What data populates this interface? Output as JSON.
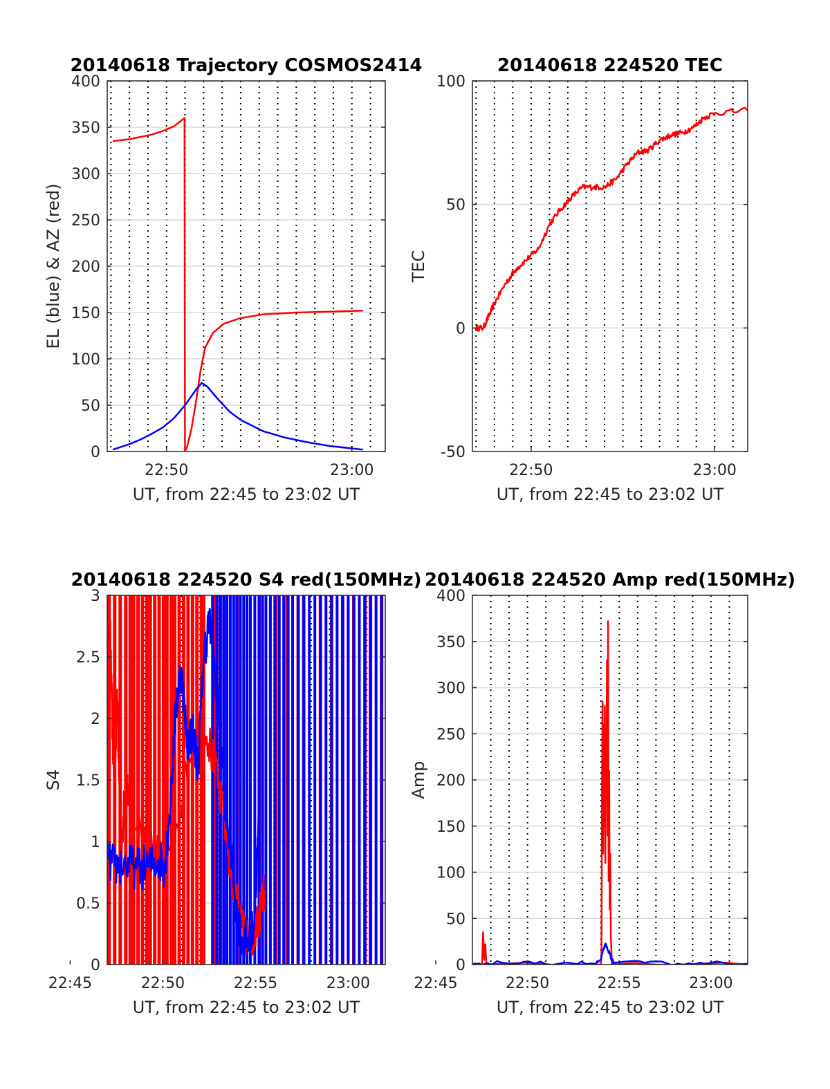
{
  "colors": {
    "red": "#ff0000",
    "blue": "#0000ff",
    "grid": "#d9d9d9",
    "axis": "#262626"
  },
  "chart_data": [
    {
      "id": "trajectory",
      "type": "line",
      "title": "20140618 Trajectory COSMOS2414",
      "xlabel": "UT, from 22:45 to 23:02 UT",
      "ylabel": "EL (blue) & AZ (red)",
      "xlim": [
        22.78,
        23.03
      ],
      "ylim": [
        0,
        400
      ],
      "x_ticks": [
        {
          "value": 22.8333,
          "label": "22:50"
        },
        {
          "value": 23.0,
          "label": "23:00"
        }
      ],
      "y_ticks": [
        {
          "value": 0,
          "label": "0"
        },
        {
          "value": 50,
          "label": "50"
        },
        {
          "value": 100,
          "label": "100"
        },
        {
          "value": 150,
          "label": "150"
        },
        {
          "value": 200,
          "label": "200"
        },
        {
          "value": 250,
          "label": "250"
        },
        {
          "value": 300,
          "label": "300"
        },
        {
          "value": 350,
          "label": "350"
        },
        {
          "value": 400,
          "label": "400"
        }
      ],
      "grid": true,
      "series": [
        {
          "color": "red",
          "points": [
            [
              22.785,
              335
            ],
            [
              22.8,
              337
            ],
            [
              22.82,
              342
            ],
            [
              22.83,
              346
            ],
            [
              22.84,
              351
            ],
            [
              22.8495,
              360
            ],
            [
              22.8499,
              0
            ],
            [
              22.852,
              6
            ],
            [
              22.856,
              26
            ],
            [
              22.86,
              55
            ],
            [
              22.864,
              88
            ],
            [
              22.868,
              112
            ],
            [
              22.875,
              128
            ],
            [
              22.885,
              138
            ],
            [
              22.9,
              144
            ],
            [
              22.92,
              148
            ],
            [
              22.95,
              150
            ],
            [
              22.98,
              151
            ],
            [
              23.01,
              152
            ]
          ]
        },
        {
          "color": "blue",
          "points": [
            [
              22.785,
              2
            ],
            [
              22.8,
              8
            ],
            [
              22.81,
              13
            ],
            [
              22.82,
              19
            ],
            [
              22.83,
              26
            ],
            [
              22.84,
              36
            ],
            [
              22.85,
              50
            ],
            [
              22.86,
              67
            ],
            [
              22.865,
              74
            ],
            [
              22.87,
              70
            ],
            [
              22.88,
              56
            ],
            [
              22.89,
              43
            ],
            [
              22.9,
              34
            ],
            [
              22.92,
              22
            ],
            [
              22.94,
              15
            ],
            [
              22.96,
              10
            ],
            [
              22.98,
              6
            ],
            [
              23.01,
              2
            ]
          ]
        }
      ]
    },
    {
      "id": "tec",
      "type": "line",
      "title": "20140618 224520 TEC",
      "xlabel": "UT, from 22:45 to 23:02 UT",
      "ylabel": "TEC",
      "xlim": [
        22.78,
        23.03
      ],
      "ylim": [
        -50,
        100
      ],
      "x_ticks": [
        {
          "value": 22.8333,
          "label": "22:50"
        },
        {
          "value": 23.0,
          "label": "23:00"
        }
      ],
      "y_ticks": [
        {
          "value": -50,
          "label": "-50"
        },
        {
          "value": 0,
          "label": "0"
        },
        {
          "value": 50,
          "label": "50"
        },
        {
          "value": 100,
          "label": "100"
        }
      ],
      "grid": true,
      "series": [
        {
          "color": "red",
          "noise": 1.0,
          "points": [
            [
              22.783,
              0
            ],
            [
              22.79,
              0
            ],
            [
              22.795,
              5
            ],
            [
              22.8,
              10
            ],
            [
              22.81,
              18
            ],
            [
              22.82,
              24
            ],
            [
              22.83,
              28
            ],
            [
              22.84,
              32
            ],
            [
              22.85,
              42
            ],
            [
              22.86,
              48
            ],
            [
              22.87,
              53
            ],
            [
              22.88,
              57
            ],
            [
              22.89,
              57
            ],
            [
              22.9,
              57
            ],
            [
              22.91,
              60
            ],
            [
              22.92,
              66
            ],
            [
              22.93,
              71
            ],
            [
              22.94,
              72
            ],
            [
              22.95,
              76
            ],
            [
              22.96,
              78
            ],
            [
              22.97,
              79
            ],
            [
              22.98,
              81
            ],
            [
              22.99,
              85
            ],
            [
              23.0,
              87
            ],
            [
              23.03,
              88
            ]
          ]
        }
      ]
    },
    {
      "id": "s4",
      "type": "line",
      "title": "20140618 224520 S4 red(150MHz)",
      "xlabel": "UT, from 22:45 to 23:02 UT",
      "ylabel": "S4",
      "xlim": [
        22.7833,
        23.0333
      ],
      "ylim": [
        0,
        3
      ],
      "x_ticks": [
        {
          "value": 22.75,
          "label": "22:45"
        },
        {
          "value": 22.8333,
          "label": "22:50"
        },
        {
          "value": 22.9167,
          "label": "22:55"
        },
        {
          "value": 23.0,
          "label": "23:00"
        }
      ],
      "y_ticks": [
        {
          "value": 0,
          "label": "0"
        },
        {
          "value": 0.5,
          "label": "0.5"
        },
        {
          "value": 1,
          "label": "1"
        },
        {
          "value": 1.5,
          "label": "1.5"
        },
        {
          "value": 2,
          "label": "2"
        },
        {
          "value": 2.5,
          "label": "2.5"
        },
        {
          "value": 3,
          "label": "3"
        }
      ],
      "grid": true,
      "series": [
        {
          "color": "red",
          "points": [
            [
              22.784,
              2.3
            ],
            [
              22.786,
              2.7
            ],
            [
              22.788,
              1.9
            ],
            [
              22.79,
              1.4
            ],
            [
              22.792,
              2.2
            ],
            [
              22.794,
              1.6
            ],
            [
              22.796,
              0.9
            ],
            [
              22.8,
              1.5
            ],
            [
              22.81,
              1.1
            ],
            [
              22.82,
              0.9
            ],
            [
              22.84,
              0.95
            ],
            [
              22.86,
              1.8
            ],
            [
              22.87,
              2.0
            ],
            [
              22.88,
              1.6
            ],
            [
              22.89,
              1.1
            ],
            [
              22.895,
              0.7
            ],
            [
              22.9,
              0.5
            ],
            [
              22.905,
              0.3
            ],
            [
              22.91,
              0.18
            ],
            [
              22.915,
              0.2
            ],
            [
              22.92,
              0.4
            ],
            [
              22.925,
              0.6
            ]
          ]
        },
        {
          "color": "blue",
          "points": [
            [
              22.784,
              0.85
            ],
            [
              22.79,
              0.8
            ],
            [
              22.8,
              0.82
            ],
            [
              22.81,
              0.78
            ],
            [
              22.82,
              0.8
            ],
            [
              22.83,
              0.85
            ],
            [
              22.835,
              0.8
            ],
            [
              22.84,
              1.3
            ],
            [
              22.845,
              2.1
            ],
            [
              22.85,
              2.4
            ],
            [
              22.855,
              1.8
            ],
            [
              22.86,
              1.9
            ],
            [
              22.865,
              1.6
            ],
            [
              22.87,
              2.5
            ],
            [
              22.875,
              2.8
            ],
            [
              22.88,
              2.4
            ],
            [
              22.885,
              1.9
            ],
            [
              22.89,
              1.2
            ],
            [
              22.895,
              0.9
            ],
            [
              22.9,
              0.4
            ],
            [
              22.905,
              0.2
            ],
            [
              22.91,
              0.18
            ],
            [
              22.915,
              0.3
            ],
            [
              22.92,
              1.2
            ]
          ]
        }
      ],
      "spikes": [
        {
          "color": "red",
          "x": [
            22.785,
            22.79,
            22.795,
            22.8,
            22.804,
            22.807,
            22.811,
            22.815,
            22.819,
            22.822,
            22.826,
            22.83,
            22.834,
            22.837,
            22.841,
            22.844,
            22.848,
            22.852,
            22.856,
            22.86,
            22.864,
            22.868,
            22.87,
            22.88,
            22.885,
            22.89,
            22.9,
            22.92,
            22.935,
            22.945,
            22.955,
            22.96,
            22.975,
            22.985,
            22.995,
            23.005,
            23.015,
            23.02,
            23.03
          ],
          "y": 3
        },
        {
          "color": "blue",
          "x": [
            22.878,
            22.882,
            22.885,
            22.888,
            22.891,
            22.894,
            22.897,
            22.9,
            22.903,
            22.906,
            22.909,
            22.912,
            22.916,
            22.92,
            22.923,
            22.926,
            22.93,
            22.934,
            22.938,
            22.942,
            22.946,
            22.95,
            22.955,
            22.96,
            22.965,
            22.97,
            22.975,
            22.98,
            22.985,
            22.99,
            22.995,
            23.0,
            23.005,
            23.01,
            23.015,
            23.02,
            23.025,
            23.03
          ],
          "y": 3
        }
      ]
    },
    {
      "id": "amp",
      "type": "line",
      "title": "20140618 224520 Amp red(150MHz)",
      "xlabel": "UT, from 22:45 to 23:02 UT",
      "ylabel": "Amp",
      "xlim": [
        22.7833,
        23.0333
      ],
      "ylim": [
        0,
        400
      ],
      "x_ticks": [
        {
          "value": 22.75,
          "label": "22:45"
        },
        {
          "value": 22.8333,
          "label": "22:50"
        },
        {
          "value": 22.9167,
          "label": "22:55"
        },
        {
          "value": 23.0,
          "label": "23:00"
        }
      ],
      "y_ticks": [
        {
          "value": 0,
          "label": "0"
        },
        {
          "value": 50,
          "label": "50"
        },
        {
          "value": 100,
          "label": "100"
        },
        {
          "value": 150,
          "label": "150"
        },
        {
          "value": 200,
          "label": "200"
        },
        {
          "value": 250,
          "label": "250"
        },
        {
          "value": 300,
          "label": "300"
        },
        {
          "value": 350,
          "label": "350"
        },
        {
          "value": 400,
          "label": "400"
        }
      ],
      "grid": true,
      "series": [
        {
          "color": "red",
          "points": [
            [
              22.784,
              0
            ],
            [
              22.792,
              0
            ],
            [
              22.793,
              35
            ],
            [
              22.794,
              5
            ],
            [
              22.795,
              22
            ],
            [
              22.796,
              0
            ],
            [
              22.9,
              0
            ],
            [
              22.9005,
              10
            ],
            [
              22.901,
              180
            ],
            [
              22.9015,
              285
            ],
            [
              22.902,
              120
            ],
            [
              22.9025,
              260
            ],
            [
              22.903,
              150
            ],
            [
              22.9035,
              280
            ],
            [
              22.904,
              110
            ],
            [
              22.9045,
              250
            ],
            [
              22.905,
              200
            ],
            [
              22.9055,
              330
            ],
            [
              22.906,
              140
            ],
            [
              22.9065,
              372
            ],
            [
              22.907,
              90
            ],
            [
              22.9075,
              210
            ],
            [
              22.908,
              60
            ],
            [
              22.9085,
              120
            ],
            [
              22.909,
              30
            ],
            [
              22.91,
              0
            ],
            [
              23.033,
              0
            ]
          ]
        },
        {
          "color": "blue",
          "points": [
            [
              22.784,
              1
            ],
            [
              22.81,
              2
            ],
            [
              22.84,
              1
            ],
            [
              22.87,
              2
            ],
            [
              22.895,
              1
            ],
            [
              22.9,
              5
            ],
            [
              22.902,
              15
            ],
            [
              22.904,
              22
            ],
            [
              22.906,
              16
            ],
            [
              22.908,
              12
            ],
            [
              22.91,
              5
            ],
            [
              22.912,
              2
            ],
            [
              22.94,
              2
            ],
            [
              22.97,
              1
            ],
            [
              23.0,
              2
            ],
            [
              23.033,
              1
            ]
          ]
        }
      ]
    }
  ]
}
